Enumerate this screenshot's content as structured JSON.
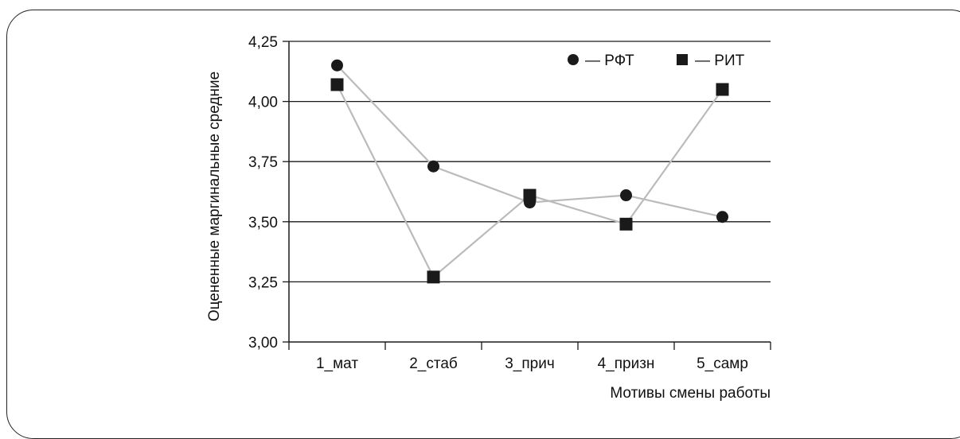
{
  "chart_data": {
    "type": "line",
    "title": "",
    "xlabel": "Мотивы смены работы",
    "ylabel": "Оцененные маргинальные средние",
    "categories": [
      "1_мат",
      "2_стаб",
      "3_прич",
      "4_призн",
      "5_самр"
    ],
    "ylim": [
      3.0,
      4.25
    ],
    "yticks": [
      "3,00",
      "3,25",
      "3,50",
      "3,75",
      "4,00",
      "4,25"
    ],
    "ytick_values": [
      3.0,
      3.25,
      3.5,
      3.75,
      4.0,
      4.25
    ],
    "grid": "horizontal",
    "legend_position": "top-right",
    "line_color": "#bbbbbb",
    "marker_color": "#1a1a1a",
    "series": [
      {
        "name": "РФТ",
        "legend_label": "— РФТ",
        "marker": "circle",
        "values": [
          4.15,
          3.73,
          3.58,
          3.61,
          3.52
        ]
      },
      {
        "name": "РИТ",
        "legend_label": "— РИТ",
        "marker": "square",
        "values": [
          4.07,
          3.27,
          3.61,
          3.49,
          4.05
        ]
      }
    ]
  }
}
